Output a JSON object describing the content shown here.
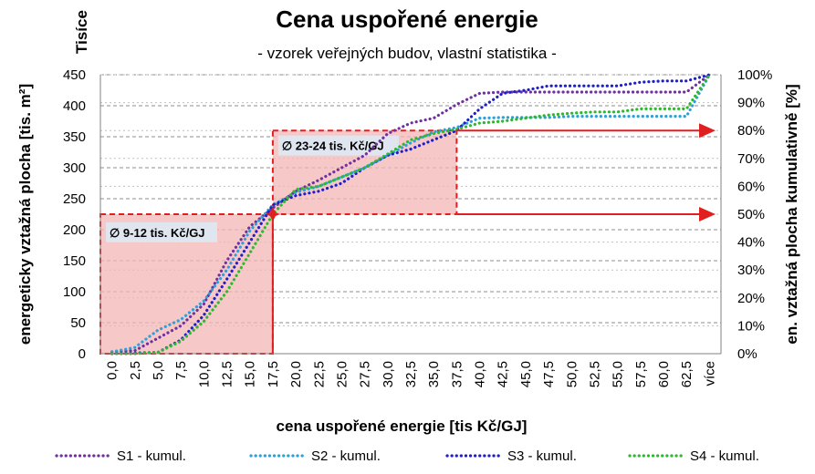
{
  "chart_data": {
    "type": "line",
    "title": "Cena uspořené energie",
    "subtitle": "- vzorek veřejných budov, vlastní statistika -",
    "units_label": "Tisíce",
    "xlabel": "cena uspořené energie [tis Kč/GJ]",
    "ylabel": "energeticky vztažná plocha [tis. m²]",
    "y2label": "en. vztažná plocha kumulativně [%]",
    "x_categories": [
      "0,0",
      "2,5",
      "5,0",
      "7,5",
      "10,0",
      "12,5",
      "15,0",
      "17,5",
      "20,0",
      "22,5",
      "25,0",
      "27,5",
      "30,0",
      "32,5",
      "35,0",
      "37,5",
      "40,0",
      "42,5",
      "45,0",
      "47,5",
      "50,0",
      "52,5",
      "55,0",
      "57,5",
      "60,0",
      "62,5",
      "více"
    ],
    "ylim": [
      0,
      450
    ],
    "y_ticks": [
      "0",
      "50",
      "100",
      "150",
      "200",
      "250",
      "300",
      "350",
      "400",
      "450"
    ],
    "y2lim": [
      0,
      100
    ],
    "y2_ticks": [
      "0%",
      "10%",
      "20%",
      "30%",
      "40%",
      "50%",
      "60%",
      "70%",
      "80%",
      "90%",
      "100%"
    ],
    "grid": true,
    "legend_position": "bottom",
    "series": [
      {
        "name": "S1 - kumul.",
        "color": "#7030A0",
        "x": [
          0,
          1,
          2,
          3,
          4,
          5,
          6,
          7,
          8,
          9,
          10,
          11,
          12,
          13,
          14,
          15,
          16,
          17,
          18,
          19,
          20,
          21,
          22,
          23,
          24,
          25,
          26
        ],
        "y": [
          3,
          5,
          25,
          45,
          80,
          150,
          205,
          235,
          262,
          280,
          300,
          320,
          355,
          372,
          380,
          402,
          420,
          422,
          422,
          422,
          422,
          422,
          422,
          422,
          422,
          422,
          450
        ]
      },
      {
        "name": "S2 - kumul.",
        "color": "#2E9FD9",
        "x": [
          0,
          1,
          2,
          3,
          4,
          5,
          6,
          7,
          8,
          9,
          10,
          11,
          12,
          13,
          14,
          15,
          16,
          17,
          18,
          19,
          20,
          21,
          22,
          23,
          24,
          25,
          26
        ],
        "y": [
          3,
          10,
          38,
          55,
          85,
          135,
          198,
          240,
          260,
          270,
          285,
          300,
          320,
          340,
          358,
          365,
          380,
          381,
          381,
          381,
          383,
          383,
          383,
          383,
          383,
          383,
          450
        ]
      },
      {
        "name": "S3 - kumul.",
        "color": "#1F1FC8",
        "x": [
          0,
          1,
          2,
          3,
          4,
          5,
          6,
          7,
          8,
          9,
          10,
          11,
          12,
          13,
          14,
          15,
          16,
          17,
          18,
          19,
          20,
          21,
          22,
          23,
          24,
          25,
          26
        ],
        "y": [
          0,
          1,
          2,
          22,
          62,
          120,
          180,
          240,
          255,
          262,
          275,
          300,
          320,
          330,
          345,
          360,
          395,
          420,
          425,
          432,
          432,
          432,
          432,
          438,
          440,
          440,
          450
        ]
      },
      {
        "name": "S4 - kumul.",
        "color": "#2EB82E",
        "x": [
          0,
          1,
          2,
          3,
          4,
          5,
          6,
          7,
          8,
          9,
          10,
          11,
          12,
          13,
          14,
          15,
          16,
          17,
          18,
          19,
          20,
          21,
          22,
          23,
          24,
          25,
          26
        ],
        "y": [
          0,
          0,
          2,
          20,
          52,
          100,
          162,
          225,
          265,
          270,
          285,
          300,
          322,
          345,
          355,
          362,
          372,
          375,
          380,
          385,
          388,
          390,
          390,
          395,
          395,
          395,
          450
        ]
      }
    ],
    "annotations": [
      {
        "text": "∅ 9-12 tis. Kč/GJ",
        "x_range": [
          0,
          7
        ],
        "y": 225
      },
      {
        "text": "∅ 23-24 tis. Kč/GJ",
        "x_range": [
          7,
          15
        ],
        "y": 360
      },
      {
        "text_arrow_50": "",
        "y2": 50
      },
      {
        "text_arrow_80": "",
        "y2": 80
      }
    ]
  }
}
